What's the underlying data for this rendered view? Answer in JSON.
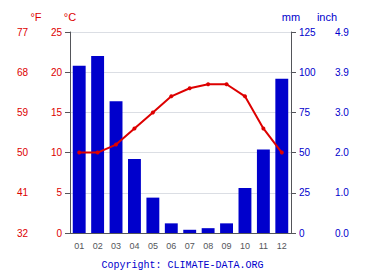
{
  "chart_data": {
    "type": "bar",
    "categories": [
      "01",
      "02",
      "03",
      "04",
      "05",
      "06",
      "07",
      "08",
      "09",
      "10",
      "11",
      "12"
    ],
    "series": [
      {
        "type": "bar",
        "color": "#0000cc",
        "axis": "y2",
        "values": [
          104,
          110,
          82,
          46,
          22,
          6,
          2,
          3,
          6,
          28,
          52,
          96
        ]
      },
      {
        "type": "line",
        "color": "#dd0000",
        "marker": "circle",
        "values": [
          10,
          10,
          11,
          13,
          15,
          17,
          18,
          18.5,
          18.5,
          17,
          13,
          10
        ]
      }
    ],
    "ylabel": "°C",
    "ylim": [
      0,
      25
    ],
    "yticks": [
      0,
      5,
      10,
      15,
      20,
      25
    ],
    "y2label": "mm",
    "y2lim": [
      0,
      125
    ],
    "y2ticks": [
      0,
      25,
      50,
      75,
      100,
      125
    ],
    "y3label": "°F",
    "y3lim": [
      32,
      77
    ],
    "y3ticks": [
      32,
      41,
      50,
      59,
      68,
      77
    ],
    "y4label": "inch",
    "y4lim": [
      0,
      125
    ],
    "y4ticks": [
      {
        "value": 0,
        "label": "0.0"
      },
      {
        "value": 25,
        "label": "1.0"
      },
      {
        "value": 50,
        "label": "2.0"
      },
      {
        "value": 75,
        "label": "3.0"
      },
      {
        "value": 100,
        "label": "3.9"
      },
      {
        "value": 125,
        "label": "4.9"
      }
    ],
    "grid": true,
    "annotations": [
      {
        "text": "Copyright: CLIMATE-DATA.ORG",
        "color": "#0000cc"
      }
    ]
  }
}
